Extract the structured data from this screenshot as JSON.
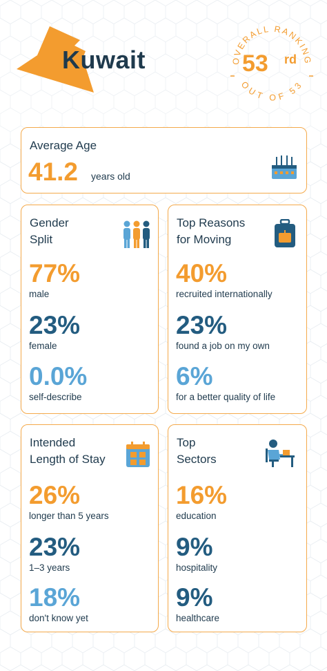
{
  "header": {
    "country": "Kuwait",
    "ranking_arc_top": "OVERALL RANKING",
    "ranking_arc_bottom": "OUT OF 53",
    "rank_number": "53",
    "rank_suffix": "rd"
  },
  "colors": {
    "orange": "#f39c2f",
    "navy": "#235c80",
    "light_blue": "#5aa5d6",
    "dark_text": "#1f3a4d",
    "border": "#f4a94a"
  },
  "average_age": {
    "title": "Average Age",
    "value": "41.2",
    "unit": "years old",
    "icon": "cake-icon"
  },
  "gender_split": {
    "title_line1": "Gender",
    "title_line2": "Split",
    "icon": "people-icon",
    "stats": [
      {
        "value": "77%",
        "label": "male"
      },
      {
        "value": "23%",
        "label": "female"
      },
      {
        "value": "0.0%",
        "label": "self-describe"
      }
    ]
  },
  "reasons": {
    "title_line1": "Top Reasons",
    "title_line2": "for Moving",
    "icon": "suitcase-icon",
    "stats": [
      {
        "value": "40%",
        "label": "recruited internationally"
      },
      {
        "value": "23%",
        "label": "found a job on my own"
      },
      {
        "value": "6%",
        "label": "for a better quality of life"
      }
    ]
  },
  "stay": {
    "title_line1": "Intended",
    "title_line2": "Length of Stay",
    "icon": "calendar-icon",
    "stats": [
      {
        "value": "26%",
        "label": "longer than 5 years"
      },
      {
        "value": "23%",
        "label": "1–3 years"
      },
      {
        "value": "18%",
        "label": "don't know yet"
      }
    ]
  },
  "sectors": {
    "title_line1": "Top",
    "title_line2": "Sectors",
    "icon": "desk-worker-icon",
    "stats": [
      {
        "value": "16%",
        "label": "education"
      },
      {
        "value": "9%",
        "label": "hospitality"
      },
      {
        "value": "9%",
        "label": "healthcare"
      }
    ]
  }
}
